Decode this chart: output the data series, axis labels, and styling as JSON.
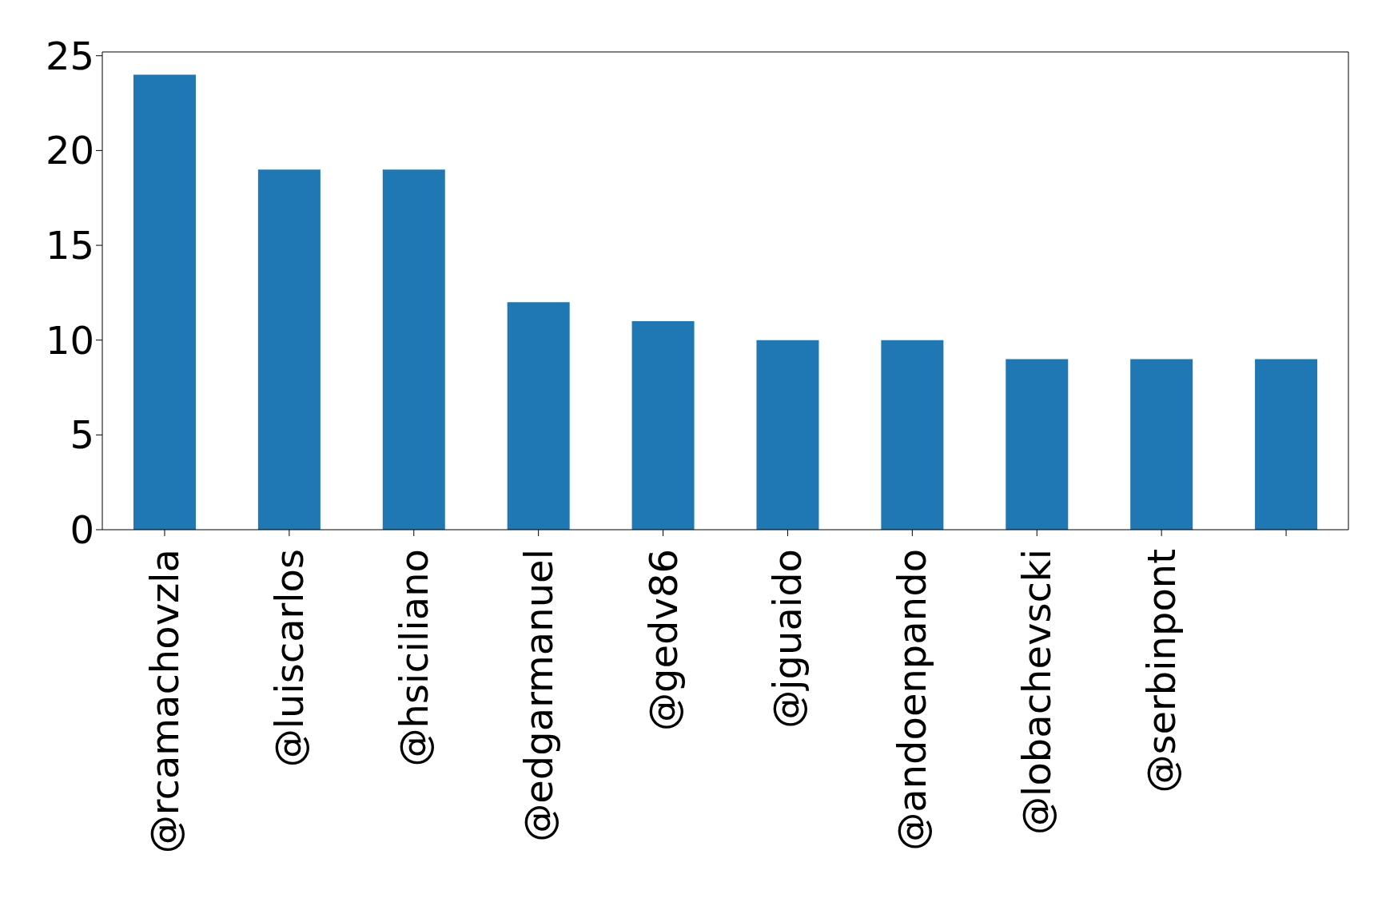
{
  "chart_data": {
    "type": "bar",
    "categories": [
      "@rcamachovzla",
      "@luiscarlos",
      "@hsiciliano",
      "@edgarmanuel",
      "@gedv86",
      "@jguaido",
      "@andoenpando",
      "@lobachevscki",
      "@serbinpont",
      null
    ],
    "values": [
      24,
      19,
      19,
      12,
      11,
      10,
      10,
      9,
      9,
      9
    ],
    "color": "#1f77b4",
    "ylim": [
      0,
      25.2
    ],
    "yticks": [
      0,
      5,
      10,
      15,
      20,
      25
    ],
    "grid": false,
    "legend": false
  }
}
